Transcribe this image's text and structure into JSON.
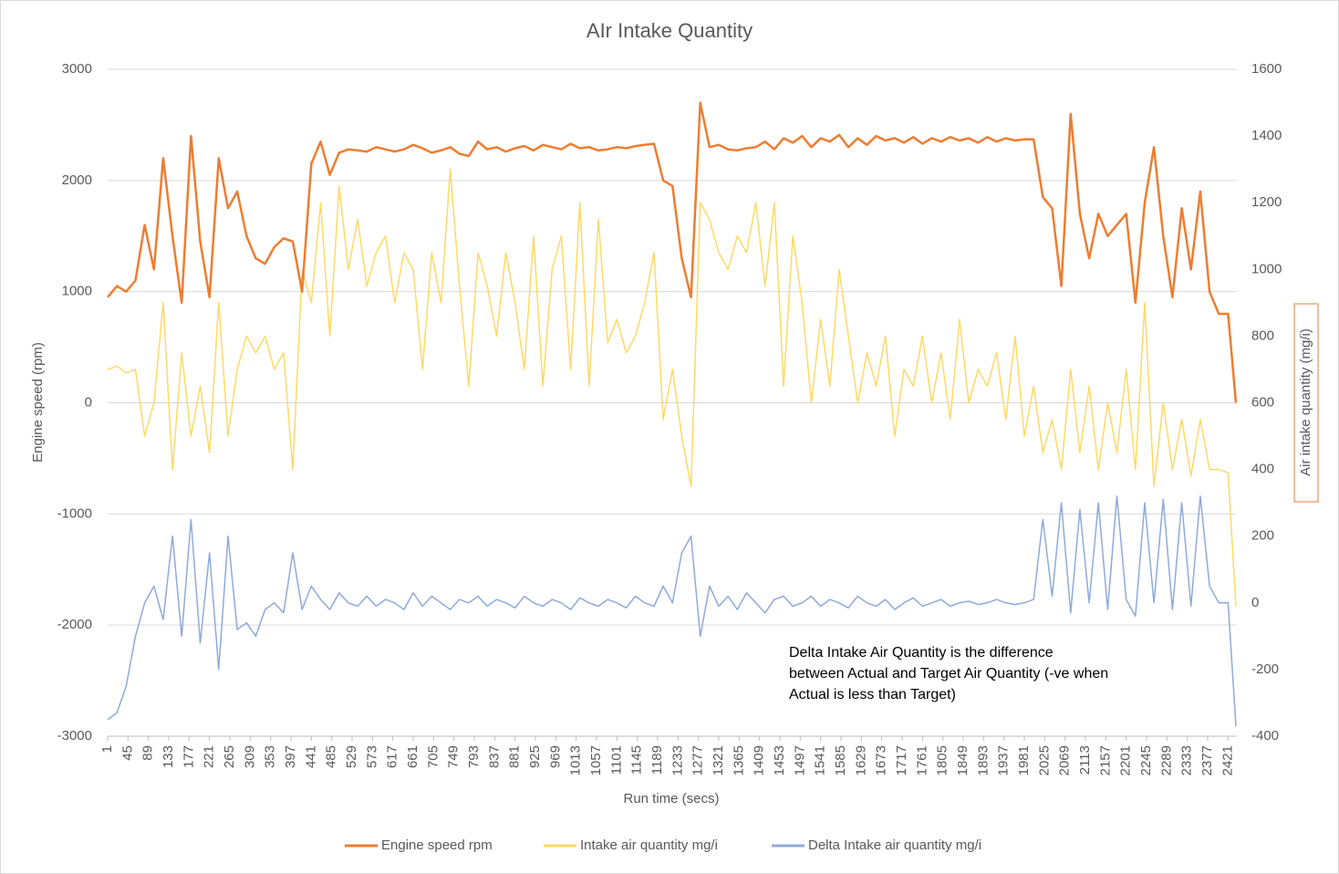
{
  "chart_data": {
    "type": "line",
    "title": "AIr Intake Quantity",
    "xlabel": "Run time (secs)",
    "ylabel": "Engine speed (rpm)",
    "y2label": "Air intake quantity (mg/i)",
    "annotation": [
      "Delta Intake Air Quantity is the difference",
      "between Actual and Target Air Quantity (-ve when",
      "Actual is less than Target)"
    ],
    "grid": true,
    "legend": "bottom",
    "xlim": [
      1,
      2440
    ],
    "xticks": [
      1,
      45,
      89,
      133,
      177,
      221,
      265,
      309,
      353,
      397,
      441,
      485,
      529,
      573,
      617,
      661,
      705,
      749,
      793,
      837,
      881,
      925,
      969,
      1013,
      1057,
      1101,
      1145,
      1189,
      1233,
      1277,
      1321,
      1365,
      1409,
      1453,
      1497,
      1541,
      1585,
      1629,
      1673,
      1717,
      1761,
      1805,
      1849,
      1893,
      1937,
      1981,
      2025,
      2069,
      2113,
      2157,
      2201,
      2245,
      2289,
      2333,
      2377,
      2421
    ],
    "ylim": [
      -3000,
      3000
    ],
    "yticks": [
      -3000,
      -2000,
      -1000,
      0,
      1000,
      2000,
      3000
    ],
    "y2lim": [
      -400,
      1600
    ],
    "y2ticks": [
      -400,
      -200,
      0,
      200,
      400,
      600,
      800,
      1000,
      1200,
      1400,
      1600
    ],
    "x": [
      1,
      21,
      41,
      61,
      81,
      101,
      121,
      141,
      161,
      181,
      201,
      221,
      241,
      261,
      281,
      301,
      321,
      341,
      361,
      381,
      401,
      421,
      441,
      461,
      481,
      501,
      521,
      541,
      561,
      581,
      601,
      621,
      641,
      661,
      681,
      701,
      721,
      741,
      761,
      781,
      801,
      821,
      841,
      861,
      881,
      901,
      921,
      941,
      961,
      981,
      1001,
      1021,
      1041,
      1061,
      1081,
      1101,
      1121,
      1141,
      1161,
      1181,
      1201,
      1221,
      1241,
      1261,
      1281,
      1301,
      1321,
      1341,
      1361,
      1381,
      1401,
      1421,
      1441,
      1461,
      1481,
      1501,
      1521,
      1541,
      1561,
      1581,
      1601,
      1621,
      1641,
      1661,
      1681,
      1701,
      1721,
      1741,
      1761,
      1781,
      1801,
      1821,
      1841,
      1861,
      1881,
      1901,
      1921,
      1941,
      1961,
      1981,
      2001,
      2021,
      2041,
      2061,
      2081,
      2101,
      2121,
      2141,
      2161,
      2181,
      2201,
      2221,
      2241,
      2261,
      2281,
      2301,
      2321,
      2341,
      2361,
      2381,
      2401,
      2421,
      2438
    ],
    "series": [
      {
        "name": "Engine speed rpm",
        "color": "#ed7d31",
        "width": 2.5,
        "values": [
          950,
          1050,
          1000,
          1100,
          1600,
          1200,
          2200,
          1500,
          900,
          2400,
          1450,
          950,
          2200,
          1750,
          1900,
          1500,
          1300,
          1250,
          1400,
          1480,
          1450,
          1000,
          2150,
          2350,
          2050,
          2250,
          2280,
          2270,
          2260,
          2300,
          2280,
          2260,
          2280,
          2320,
          2290,
          2250,
          2270,
          2300,
          2240,
          2220,
          2350,
          2280,
          2300,
          2260,
          2290,
          2310,
          2270,
          2320,
          2300,
          2280,
          2330,
          2290,
          2300,
          2270,
          2280,
          2300,
          2290,
          2310,
          2320,
          2330,
          2000,
          1950,
          1300,
          950,
          2700,
          2300,
          2320,
          2280,
          2270,
          2290,
          2300,
          2350,
          2280,
          2380,
          2340,
          2400,
          2300,
          2380,
          2350,
          2410,
          2300,
          2380,
          2320,
          2400,
          2360,
          2380,
          2340,
          2390,
          2330,
          2380,
          2350,
          2390,
          2360,
          2380,
          2340,
          2390,
          2350,
          2380,
          2360,
          2370,
          2370,
          1850,
          1750,
          1050,
          2600,
          1700,
          1300,
          1700,
          1500,
          1600,
          1700,
          900,
          1800,
          2300,
          1500,
          950,
          1750,
          1200,
          1900,
          1000,
          800,
          800,
          0
        ]
      },
      {
        "name": "Intake air quantity mg/i",
        "color": "#ffd966",
        "width": 1.5,
        "axis": "y2",
        "values": [
          700,
          710,
          690,
          700,
          500,
          600,
          900,
          400,
          750,
          500,
          650,
          450,
          900,
          500,
          700,
          800,
          750,
          800,
          700,
          750,
          400,
          1000,
          900,
          1200,
          800,
          1250,
          1000,
          1150,
          950,
          1050,
          1100,
          900,
          1050,
          1000,
          700,
          1050,
          900,
          1300,
          950,
          650,
          1050,
          950,
          800,
          1050,
          900,
          700,
          1100,
          650,
          1000,
          1100,
          700,
          1200,
          650,
          1150,
          780,
          850,
          750,
          800,
          900,
          1050,
          550,
          700,
          500,
          350,
          1200,
          1150,
          1050,
          1000,
          1100,
          1050,
          1200,
          950,
          1200,
          650,
          1100,
          900,
          600,
          850,
          650,
          1000,
          800,
          600,
          750,
          650,
          800,
          500,
          700,
          650,
          800,
          600,
          750,
          550,
          850,
          600,
          700,
          650,
          750,
          550,
          800,
          500,
          650,
          450,
          550,
          400,
          700,
          450,
          650,
          400,
          600,
          450,
          700,
          400,
          900,
          350,
          600,
          400,
          550,
          380,
          550,
          400,
          400,
          390,
          -10
        ]
      },
      {
        "name": "Delta Intake air quantity mg/i",
        "color": "#8faadc",
        "width": 1.5,
        "axis": "y2",
        "values": [
          -350,
          -330,
          -250,
          -100,
          0,
          50,
          -50,
          200,
          -100,
          250,
          -120,
          150,
          -200,
          200,
          -80,
          -60,
          -100,
          -20,
          0,
          -30,
          150,
          -20,
          50,
          10,
          -20,
          30,
          0,
          -10,
          20,
          -10,
          10,
          0,
          -20,
          30,
          -10,
          20,
          0,
          -20,
          10,
          0,
          20,
          -10,
          10,
          0,
          -15,
          20,
          0,
          -10,
          10,
          0,
          -20,
          15,
          0,
          -10,
          10,
          0,
          -15,
          20,
          0,
          -10,
          50,
          0,
          150,
          200,
          -100,
          50,
          -10,
          20,
          -20,
          30,
          0,
          -30,
          10,
          20,
          -10,
          0,
          20,
          -10,
          10,
          0,
          -15,
          20,
          0,
          -10,
          10,
          -20,
          0,
          15,
          -10,
          0,
          10,
          -10,
          0,
          5,
          -5,
          0,
          10,
          0,
          -5,
          0,
          10,
          250,
          20,
          300,
          -30,
          280,
          0,
          300,
          -20,
          320,
          10,
          -40,
          300,
          0,
          310,
          -20,
          300,
          -10,
          320,
          50,
          0,
          0,
          -370
        ]
      }
    ]
  }
}
